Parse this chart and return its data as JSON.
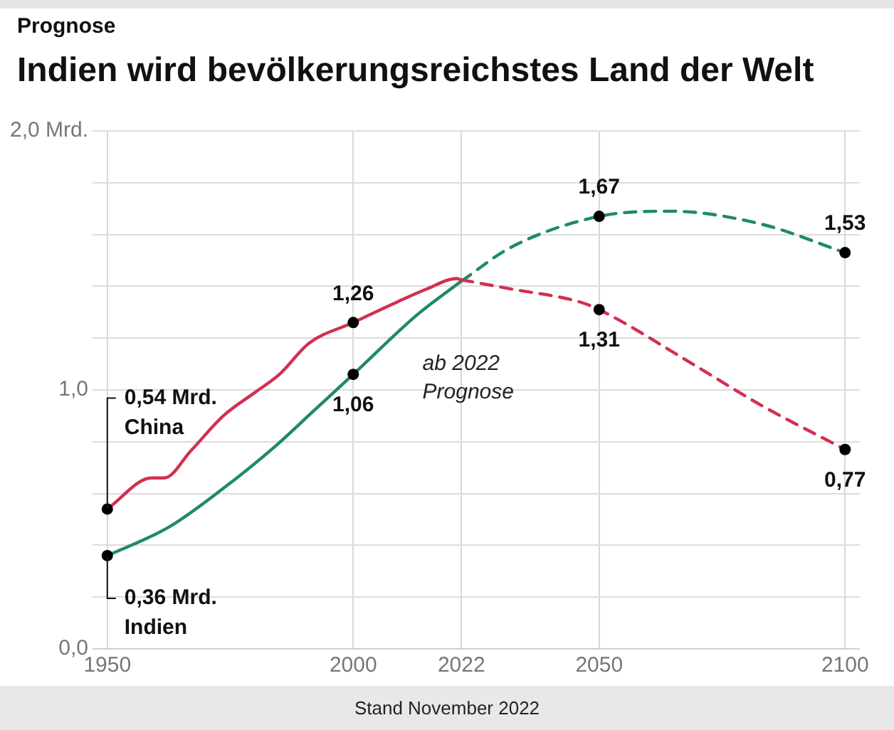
{
  "chart_data": {
    "type": "line",
    "subtitle": "Prognose",
    "title": "Indien wird bevölkerungsreichstes Land der Welt",
    "annotations": [
      "ab 2022\nPrognose",
      "Stand November 2022"
    ],
    "xlim": [
      1947,
      2103
    ],
    "xticks": [
      1950,
      2000,
      2022,
      2050,
      2100
    ],
    "ylim": [
      0,
      2
    ],
    "yticks": [
      {
        "value": 0,
        "label": "0,0"
      },
      {
        "value": 0.2,
        "label": null
      },
      {
        "value": 0.4,
        "label": null
      },
      {
        "value": 0.6,
        "label": null
      },
      {
        "value": 0.8,
        "label": null
      },
      {
        "value": 1,
        "label": "1,0"
      },
      {
        "value": 1.2,
        "label": null
      },
      {
        "value": 1.4,
        "label": null
      },
      {
        "value": 1.6,
        "label": null
      },
      {
        "value": 1.8,
        "label": null
      },
      {
        "value": 2,
        "label": "2,0 Mrd."
      }
    ],
    "grid": true,
    "legend": false,
    "line_style": "solid",
    "series": [
      {
        "name": "China",
        "color": "#d2304f",
        "x": [
          1950,
          1959,
          1961.6,
          1967,
          1973.6,
          1980,
          1985,
          1991,
          2000,
          2009,
          2015,
          2021,
          2022
        ],
        "values": [
          0.54,
          0.66,
          0.66,
          0.765,
          0.9,
          0.99,
          1.06,
          1.18,
          1.26,
          1.34,
          1.39,
          1.43,
          1.425
        ],
        "value_labels": [
          "0,54 Mrd.",
          null,
          null,
          null,
          null,
          null,
          null,
          null,
          "1,26",
          null,
          null,
          null,
          null
        ]
      },
      {
        "name": "Indien",
        "color": "#1f8a65",
        "x": [
          1950,
          1962.5,
          1973.6,
          1984,
          1992,
          2000,
          2013,
          2022
        ],
        "values": [
          0.36,
          0.47,
          0.62,
          0.78,
          0.92,
          1.06,
          1.29,
          1.42
        ],
        "value_labels": [
          "0,36 Mrd.",
          null,
          null,
          null,
          null,
          "1,06",
          null,
          null
        ]
      },
      {
        "color": "#d2304f",
        "line_style": "dashed",
        "x": [
          2022,
          2032,
          2046,
          2050,
          2069,
          2083,
          2100
        ],
        "values": [
          1.425,
          1.39,
          1.34,
          1.31,
          1.1,
          0.94,
          0.77
        ],
        "value_labels": [
          null,
          null,
          null,
          "1,31",
          null,
          null,
          "0,77"
        ]
      },
      {
        "color": "#1f8a65",
        "line_style": "dashed",
        "x": [
          2022,
          2032,
          2050,
          2064.5,
          2083,
          2100
        ],
        "values": [
          1.42,
          1.55,
          1.67,
          1.69,
          1.64,
          1.53
        ],
        "value_labels": [
          null,
          null,
          "1,67",
          null,
          null,
          "1,53"
        ]
      }
    ]
  }
}
